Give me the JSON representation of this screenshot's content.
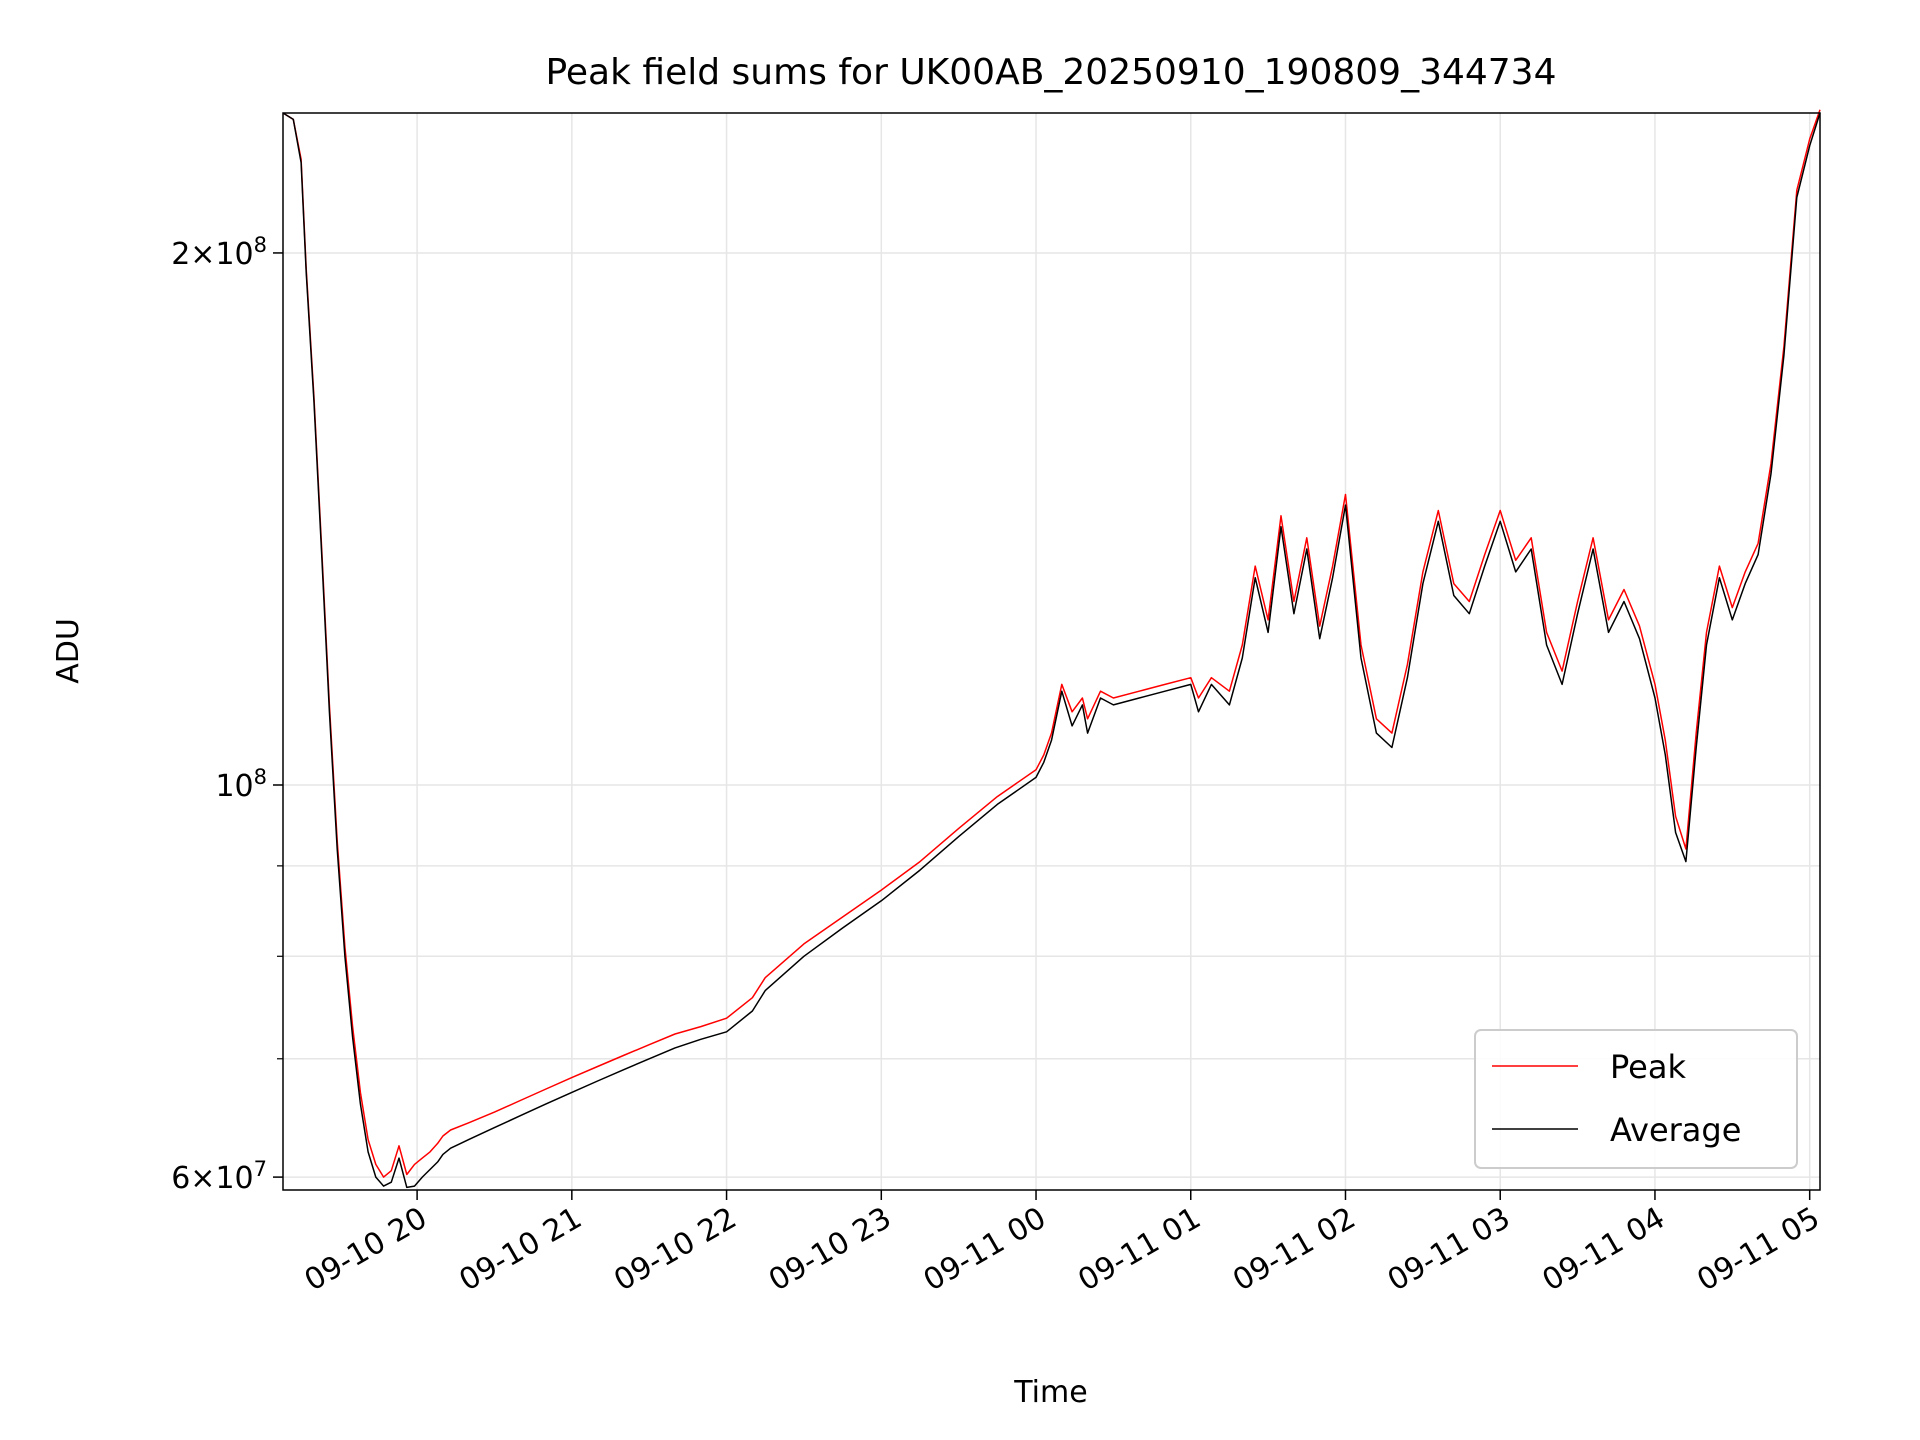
{
  "chart_data": {
    "type": "line",
    "title": "Peak field sums for UK00AB_20250910_190809_344734",
    "xlabel": "Time",
    "ylabel": "ADU",
    "yscale": "log",
    "ylim": [
      59000000,
      240000000
    ],
    "xlim": [
      "2025-09-10 19:08",
      "2025-09-11 05:04"
    ],
    "grid": true,
    "legend_position": "lower right",
    "x_ticks": [
      {
        "t": "2025-09-10 20:00",
        "label": "09-10 20"
      },
      {
        "t": "2025-09-10 21:00",
        "label": "09-10 21"
      },
      {
        "t": "2025-09-10 22:00",
        "label": "09-10 22"
      },
      {
        "t": "2025-09-10 23:00",
        "label": "09-10 23"
      },
      {
        "t": "2025-09-11 00:00",
        "label": "09-11 00"
      },
      {
        "t": "2025-09-11 01:00",
        "label": "09-11 01"
      },
      {
        "t": "2025-09-11 02:00",
        "label": "09-11 02"
      },
      {
        "t": "2025-09-11 03:00",
        "label": "09-11 03"
      },
      {
        "t": "2025-09-11 04:00",
        "label": "09-11 04"
      },
      {
        "t": "2025-09-11 05:00",
        "label": "09-11 05"
      }
    ],
    "y_major_ticks": [
      {
        "value": 60000000,
        "mant": "6",
        "exp": "7"
      },
      {
        "value": 100000000,
        "mant": "",
        "exp": "8"
      },
      {
        "value": 200000000,
        "mant": "2",
        "exp": "8"
      }
    ],
    "y_minor_ticks": [
      70000000,
      80000000,
      90000000
    ],
    "series": [
      {
        "name": "Peak",
        "color": "#ff0000"
      },
      {
        "name": "Average",
        "color": "#000000"
      }
    ],
    "x": [
      "2025-09-10 19:08",
      "2025-09-10 19:12",
      "2025-09-10 19:15",
      "2025-09-10 19:17",
      "2025-09-10 19:20",
      "2025-09-10 19:23",
      "2025-09-10 19:26",
      "2025-09-10 19:29",
      "2025-09-10 19:32",
      "2025-09-10 19:35",
      "2025-09-10 19:38",
      "2025-09-10 19:41",
      "2025-09-10 19:44",
      "2025-09-10 19:47",
      "2025-09-10 19:50",
      "2025-09-10 19:53",
      "2025-09-10 19:56",
      "2025-09-10 19:59",
      "2025-09-10 20:02",
      "2025-09-10 20:05",
      "2025-09-10 20:08",
      "2025-09-10 20:10",
      "2025-09-10 20:13",
      "2025-09-10 20:20",
      "2025-09-10 20:30",
      "2025-09-10 20:40",
      "2025-09-10 20:50",
      "2025-09-10 21:00",
      "2025-09-10 21:10",
      "2025-09-10 21:20",
      "2025-09-10 21:30",
      "2025-09-10 21:40",
      "2025-09-10 21:50",
      "2025-09-10 22:00",
      "2025-09-10 22:10",
      "2025-09-10 22:15",
      "2025-09-10 22:30",
      "2025-09-10 22:45",
      "2025-09-10 23:00",
      "2025-09-10 23:15",
      "2025-09-10 23:30",
      "2025-09-10 23:45",
      "2025-09-11 00:00",
      "2025-09-11 00:03",
      "2025-09-11 00:06",
      "2025-09-11 00:10",
      "2025-09-11 00:14",
      "2025-09-11 00:18",
      "2025-09-11 00:20",
      "2025-09-11 00:25",
      "2025-09-11 00:30",
      "2025-09-11 00:40",
      "2025-09-11 00:50",
      "2025-09-11 01:00",
      "2025-09-11 01:03",
      "2025-09-11 01:08",
      "2025-09-11 01:15",
      "2025-09-11 01:20",
      "2025-09-11 01:25",
      "2025-09-11 01:30",
      "2025-09-11 01:35",
      "2025-09-11 01:40",
      "2025-09-11 01:45",
      "2025-09-11 01:50",
      "2025-09-11 01:55",
      "2025-09-11 02:00",
      "2025-09-11 02:06",
      "2025-09-11 02:12",
      "2025-09-11 02:18",
      "2025-09-11 02:24",
      "2025-09-11 02:30",
      "2025-09-11 02:36",
      "2025-09-11 02:42",
      "2025-09-11 02:48",
      "2025-09-11 02:54",
      "2025-09-11 03:00",
      "2025-09-11 03:06",
      "2025-09-11 03:12",
      "2025-09-11 03:18",
      "2025-09-11 03:24",
      "2025-09-11 03:30",
      "2025-09-11 03:36",
      "2025-09-11 03:42",
      "2025-09-11 03:48",
      "2025-09-11 03:54",
      "2025-09-11 04:00",
      "2025-09-11 04:04",
      "2025-09-11 04:08",
      "2025-09-11 04:12",
      "2025-09-11 04:16",
      "2025-09-11 04:20",
      "2025-09-11 04:25",
      "2025-09-11 04:30",
      "2025-09-11 04:35",
      "2025-09-11 04:40",
      "2025-09-11 04:45",
      "2025-09-11 04:50",
      "2025-09-11 04:55",
      "2025-09-11 05:00",
      "2025-09-11 05:04"
    ],
    "average": [
      240000000,
      238000000,
      225000000,
      195000000,
      165000000,
      135000000,
      110000000,
      92000000,
      80000000,
      72000000,
      66000000,
      62000000,
      60000000,
      59300000,
      59600000,
      61500000,
      59200000,
      59300000,
      60000000,
      60600000,
      61200000,
      61800000,
      62300000,
      63000000,
      64000000,
      65000000,
      66000000,
      67000000,
      68000000,
      69000000,
      70000000,
      71000000,
      71800000,
      72500000,
      74500000,
      76500000,
      80000000,
      83000000,
      86000000,
      89500000,
      93500000,
      97500000,
      101000000,
      103000000,
      106000000,
      113000000,
      108000000,
      111000000,
      107000000,
      112000000,
      111000000,
      112000000,
      113000000,
      114000000,
      110000000,
      114000000,
      111000000,
      118000000,
      131000000,
      122000000,
      140000000,
      125000000,
      136000000,
      121000000,
      131000000,
      144000000,
      118000000,
      107000000,
      105000000,
      115000000,
      130000000,
      141000000,
      128000000,
      125000000,
      133000000,
      141000000,
      132000000,
      136000000,
      120000000,
      114000000,
      125000000,
      136000000,
      122000000,
      127000000,
      121000000,
      112000000,
      104000000,
      94000000,
      90500000,
      105000000,
      120000000,
      131000000,
      124000000,
      130000000,
      135000000,
      150000000,
      175000000,
      215000000,
      230000000,
      240000000
    ],
    "peak": [
      240000000,
      238000000,
      226000000,
      196000000,
      166000000,
      136000000,
      111000000,
      93000000,
      81000000,
      73000000,
      67000000,
      63000000,
      61000000,
      60000000,
      60500000,
      62500000,
      60200000,
      61000000,
      61500000,
      62000000,
      62700000,
      63300000,
      63800000,
      64400000,
      65300000,
      66300000,
      67300000,
      68300000,
      69300000,
      70300000,
      71300000,
      72300000,
      73000000,
      73800000,
      75800000,
      77800000,
      81300000,
      84200000,
      87200000,
      90500000,
      94500000,
      98500000,
      102000000,
      104000000,
      107000000,
      114000000,
      110000000,
      112000000,
      109000000,
      113000000,
      112000000,
      113000000,
      114000000,
      115000000,
      112000000,
      115000000,
      113000000,
      120000000,
      133000000,
      124000000,
      142000000,
      127000000,
      138000000,
      123000000,
      133000000,
      146000000,
      120000000,
      109000000,
      107000000,
      117000000,
      132000000,
      143000000,
      130000000,
      127000000,
      135000000,
      143000000,
      134000000,
      138000000,
      122000000,
      116000000,
      127000000,
      138000000,
      124000000,
      129000000,
      123000000,
      114000000,
      106000000,
      96000000,
      92000000,
      107000000,
      122000000,
      133000000,
      126000000,
      132000000,
      137000000,
      152000000,
      177000000,
      217000000,
      232000000,
      241000000
    ]
  }
}
